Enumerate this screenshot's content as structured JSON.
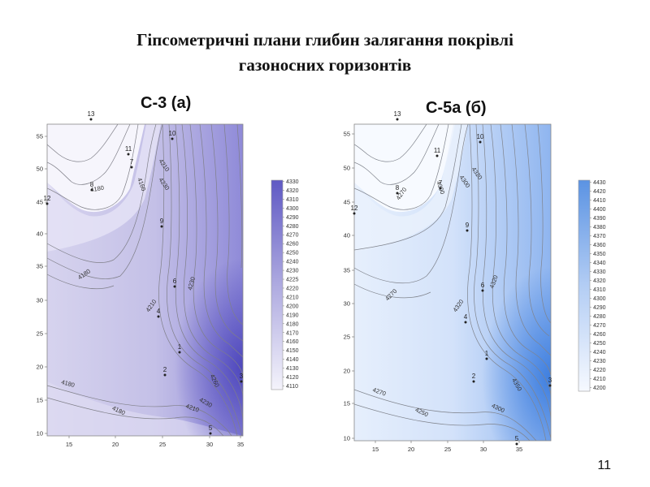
{
  "slide": {
    "title_line1": "Гіпсометричні плани глибин залягання покрівлі",
    "title_line2": "газоносних горизонтів",
    "page_number": "11"
  },
  "maps": [
    {
      "title": "С-3 (а)",
      "colors": {
        "low": "#f5f4fb",
        "mid": "#d3d0ed",
        "high": "#8a86d6",
        "peak": "#5f59c4"
      },
      "x_ticks": [
        "15",
        "20",
        "25",
        "30",
        "35"
      ],
      "y_ticks": [
        "55",
        "50",
        "45",
        "40",
        "35",
        "30",
        "25",
        "20",
        "15",
        "10"
      ],
      "contour_labels": [
        "4180",
        "4180",
        "4180",
        "4180",
        "4160",
        "4210",
        "4230",
        "4210",
        "4230",
        "4260",
        "4230",
        "4210"
      ],
      "wells": [
        "13",
        "11",
        "10",
        "8",
        "7",
        "12",
        "9",
        "6",
        "4",
        "1",
        "2",
        "5",
        "3"
      ],
      "legend_values": [
        "4330",
        "4320",
        "4310",
        "4300",
        "4290",
        "4280",
        "4270",
        "4260",
        "4250",
        "4240",
        "4230",
        "4225",
        "4220",
        "4210",
        "4200",
        "4190",
        "4180",
        "4170",
        "4160",
        "4150",
        "4140",
        "4130",
        "4120",
        "4110"
      ]
    },
    {
      "title": "С-5а (б)",
      "colors": {
        "low": "#f6f9ff",
        "mid": "#d8e6fb",
        "high": "#a9c6f3",
        "peak": "#5b93e3"
      },
      "x_ticks": [
        "15",
        "20",
        "25",
        "30",
        "35"
      ],
      "y_ticks": [
        "55",
        "50",
        "45",
        "40",
        "35",
        "30",
        "25",
        "20",
        "15",
        "10"
      ],
      "contour_labels": [
        "4270",
        "4270",
        "4250",
        "4270",
        "4300",
        "4320",
        "4300",
        "4320",
        "4300",
        "4320",
        "4350"
      ],
      "wells": [
        "13",
        "10",
        "11",
        "8",
        "7",
        "12",
        "9",
        "6",
        "4",
        "1",
        "2",
        "5",
        "3"
      ],
      "legend_values": [
        "4430",
        "4420",
        "4410",
        "4400",
        "4390",
        "4380",
        "4370",
        "4360",
        "4350",
        "4340",
        "4330",
        "4320",
        "4310",
        "4300",
        "4290",
        "4280",
        "4270",
        "4260",
        "4250",
        "4240",
        "4230",
        "4220",
        "4210",
        "4200"
      ]
    }
  ]
}
